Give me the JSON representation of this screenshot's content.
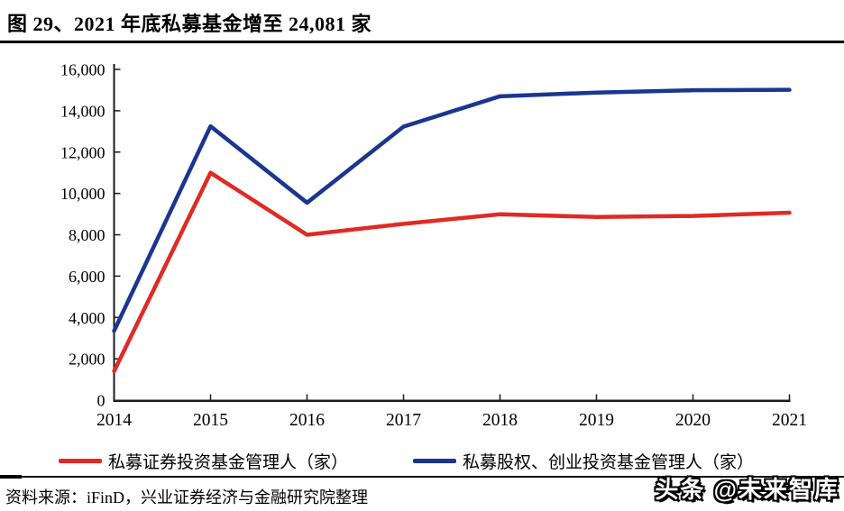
{
  "header": {
    "title": "图 29、2021 年底私募基金增至 24,081 家"
  },
  "footer": {
    "source": "资料来源：iFinD，兴业证券经济与金融研究院整理",
    "watermark": "头条 @未来智库"
  },
  "chart_data": {
    "type": "line",
    "title": "2021 年底私募基金增至 24,081 家",
    "categories": [
      "2014",
      "2015",
      "2016",
      "2017",
      "2018",
      "2019",
      "2020",
      "2021"
    ],
    "series": [
      {
        "name": "私募证券投资基金管理人（家）",
        "color": "#E02A25",
        "values": [
          1400,
          11000,
          8000,
          8530,
          8990,
          8860,
          8910,
          9069
        ]
      },
      {
        "name": "私募股权、创业投资基金管理人（家）",
        "color": "#1A3690",
        "values": [
          3350,
          13250,
          9550,
          13230,
          14700,
          14880,
          14990,
          15012
        ]
      }
    ],
    "ylim": [
      0,
      16000
    ],
    "ytick_step": 2000,
    "ytick_labels": [
      "0",
      "2,000",
      "4,000",
      "6,000",
      "8,000",
      "10,000",
      "12,000",
      "14,000",
      "16,000"
    ],
    "xlabel": "",
    "ylabel": "",
    "grid": false,
    "legend_position": "bottom",
    "axis_color": "#1a1a1a",
    "text_color": "#000000"
  }
}
